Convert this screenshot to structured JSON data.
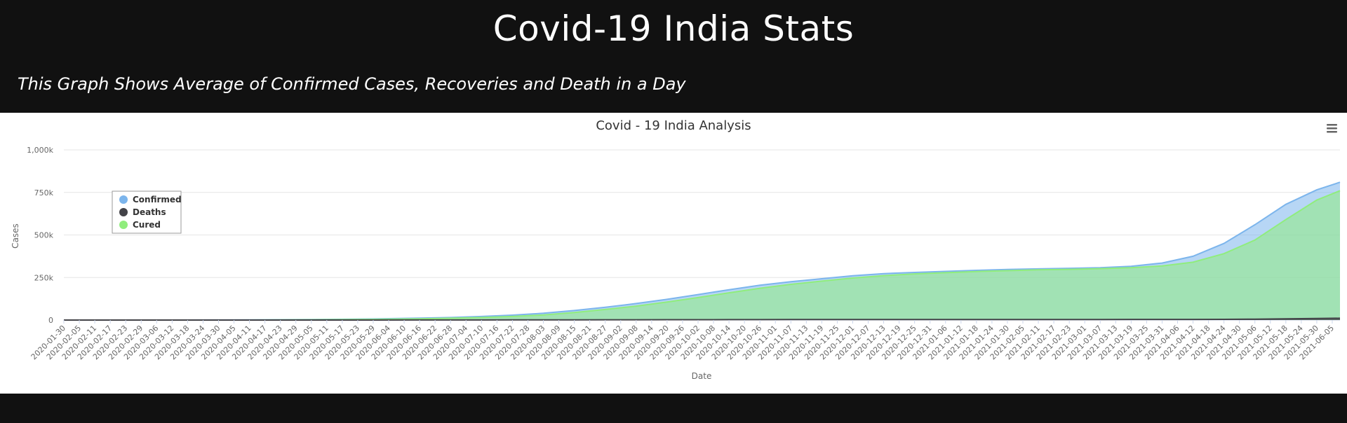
{
  "page": {
    "title": "Covid-19 India Stats",
    "subtitle": "This Graph Shows Average of Confirmed Cases, Recoveries and Death in a Day"
  },
  "menu_icon": "hamburger-menu-icon",
  "chart_data": {
    "type": "area",
    "title": "Covid - 19 India Analysis",
    "xlabel": "Date",
    "ylabel": "Cases",
    "ylim": [
      0,
      1000000
    ],
    "y_ticks": [
      0,
      250000,
      500000,
      750000,
      1000000
    ],
    "y_tick_labels": [
      "0",
      "250k",
      "500k",
      "750k",
      "1,000k"
    ],
    "grid": true,
    "legend_placement": "top-left",
    "x_tick_labels": [
      "2020-01-30",
      "2020-02-05",
      "2020-02-11",
      "2020-02-17",
      "2020-02-23",
      "2020-02-29",
      "2020-03-06",
      "2020-03-12",
      "2020-03-18",
      "2020-03-24",
      "2020-03-30",
      "2020-04-05",
      "2020-04-11",
      "2020-04-17",
      "2020-04-23",
      "2020-04-29",
      "2020-05-05",
      "2020-05-11",
      "2020-05-17",
      "2020-05-23",
      "2020-05-29",
      "2020-06-04",
      "2020-06-10",
      "2020-06-16",
      "2020-06-22",
      "2020-06-28",
      "2020-07-04",
      "2020-07-10",
      "2020-07-16",
      "2020-07-22",
      "2020-07-28",
      "2020-08-03",
      "2020-08-09",
      "2020-08-15",
      "2020-08-21",
      "2020-08-27",
      "2020-09-02",
      "2020-09-08",
      "2020-09-14",
      "2020-09-20",
      "2020-09-26",
      "2020-10-02",
      "2020-10-08",
      "2020-10-14",
      "2020-10-20",
      "2020-10-26",
      "2020-11-01",
      "2020-11-07",
      "2020-11-13",
      "2020-11-19",
      "2020-11-25",
      "2020-12-01",
      "2020-12-07",
      "2020-12-13",
      "2020-12-19",
      "2020-12-25",
      "2020-12-31",
      "2021-01-06",
      "2021-01-12",
      "2021-01-18",
      "2021-01-24",
      "2021-01-30",
      "2021-02-05",
      "2021-02-11",
      "2021-02-17",
      "2021-02-23",
      "2021-03-01",
      "2021-03-07",
      "2021-03-13",
      "2021-03-19",
      "2021-03-25",
      "2021-03-31",
      "2021-04-06",
      "2021-04-12",
      "2021-04-18",
      "2021-04-24",
      "2021-04-30",
      "2021-05-06",
      "2021-05-12",
      "2021-05-18",
      "2021-05-24",
      "2021-05-30",
      "2021-06-05"
    ],
    "x": [
      "2020-01-30",
      "2020-03-06",
      "2020-04-11",
      "2020-05-05",
      "2020-05-29",
      "2020-06-16",
      "2020-06-28",
      "2020-07-10",
      "2020-07-22",
      "2020-08-03",
      "2020-08-15",
      "2020-08-27",
      "2020-09-08",
      "2020-09-20",
      "2020-10-02",
      "2020-10-14",
      "2020-10-26",
      "2020-11-07",
      "2020-11-19",
      "2020-12-01",
      "2020-12-13",
      "2020-12-25",
      "2021-01-06",
      "2021-01-18",
      "2021-01-30",
      "2021-02-11",
      "2021-02-23",
      "2021-03-07",
      "2021-03-19",
      "2021-03-31",
      "2021-04-12",
      "2021-04-24",
      "2021-05-06",
      "2021-05-18",
      "2021-05-30",
      "2021-06-08"
    ],
    "series": [
      {
        "name": "Confirmed",
        "color": "#7cb5ec",
        "values": [
          0,
          200,
          800,
          3000,
          6500,
          11000,
          15000,
          21000,
          29000,
          40000,
          56000,
          75000,
          97000,
          122000,
          150000,
          178000,
          205000,
          225000,
          243000,
          260000,
          273000,
          280000,
          286000,
          292000,
          297000,
          301000,
          304000,
          308000,
          316000,
          335000,
          375000,
          450000,
          560000,
          680000,
          765000,
          810000
        ]
      },
      {
        "name": "Deaths",
        "color": "#434348",
        "values": [
          0,
          0,
          20,
          100,
          200,
          350,
          500,
          600,
          750,
          950,
          1200,
          1450,
          1700,
          1950,
          2150,
          2350,
          2550,
          2700,
          2850,
          2950,
          3050,
          3150,
          3200,
          3250,
          3300,
          3350,
          3400,
          3450,
          3500,
          3600,
          3750,
          4300,
          5500,
          7500,
          9500,
          10500
        ]
      },
      {
        "name": "Cured",
        "color": "#90ed7d",
        "values": [
          0,
          50,
          200,
          1500,
          4000,
          7500,
          10500,
          15000,
          21000,
          30000,
          44000,
          62000,
          82000,
          106000,
          132000,
          160000,
          187000,
          210000,
          229000,
          247000,
          261000,
          271000,
          278000,
          285000,
          290000,
          295000,
          298000,
          302000,
          308000,
          318000,
          340000,
          390000,
          470000,
          590000,
          705000,
          760000
        ]
      }
    ]
  }
}
